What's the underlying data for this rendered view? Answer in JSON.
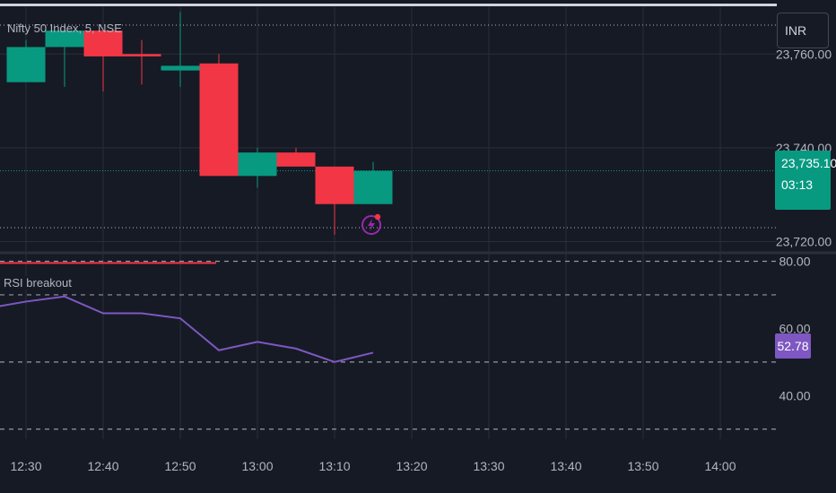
{
  "header": {
    "symbol_title": "Nifty 50 Index, 5, NSE",
    "currency": "INR"
  },
  "price_tag": {
    "price": "23,735.10",
    "countdown": "03:13"
  },
  "indicator": {
    "title": "RSI breakout",
    "rsi_value": "52.78"
  },
  "colors": {
    "up": "#089981",
    "down": "#f23645",
    "rsi_line": "#7e57c2",
    "breakout_line": "#f23645",
    "grid": "#2a2e39",
    "background": "#161a25"
  },
  "chart_data": [
    {
      "type": "candlestick",
      "title": "Nifty 50 Index, 5, NSE",
      "x": [
        "12:30",
        "12:35",
        "12:40",
        "12:45",
        "12:50",
        "12:55",
        "13:00",
        "13:05",
        "13:10",
        "13:15"
      ],
      "candles": [
        {
          "o": 23754.0,
          "h": 23763.0,
          "l": 23754.0,
          "c": 23761.5
        },
        {
          "o": 23761.5,
          "h": 23766.0,
          "l": 23753.0,
          "c": 23765.0
        },
        {
          "o": 23765.0,
          "h": 23765.0,
          "l": 23752.0,
          "c": 23759.5
        },
        {
          "o": 23760.0,
          "h": 23763.0,
          "l": 23753.5,
          "c": 23759.5
        },
        {
          "o": 23756.5,
          "h": 23769.0,
          "l": 23753.0,
          "c": 23757.5
        },
        {
          "o": 23758.0,
          "h": 23760.0,
          "l": 23734.0,
          "c": 23734.0
        },
        {
          "o": 23734.0,
          "h": 23740.0,
          "l": 23731.5,
          "c": 23739.0
        },
        {
          "o": 23739.0,
          "h": 23740.0,
          "l": 23736.0,
          "c": 23736.0
        },
        {
          "o": 23736.0,
          "h": 23736.0,
          "l": 23721.5,
          "c": 23728.0
        },
        {
          "o": 23728.0,
          "h": 23737.0,
          "l": 23728.0,
          "c": 23735.1
        }
      ],
      "y_ticks": [
        "23,720.00",
        "23,740.00",
        "23,760.00"
      ],
      "ylim": [
        23718,
        23770
      ],
      "last_price": 23735.1,
      "time_ticks": [
        "12:30",
        "12:40",
        "12:50",
        "13:00",
        "13:10",
        "13:20",
        "13:30",
        "13:40",
        "13:50",
        "14:00"
      ]
    },
    {
      "type": "line",
      "title": "RSI breakout",
      "x": [
        "12:25",
        "12:30",
        "12:35",
        "12:40",
        "12:45",
        "12:50",
        "12:55",
        "13:00",
        "13:05",
        "13:10",
        "13:15"
      ],
      "values": [
        66.0,
        68.0,
        69.5,
        64.5,
        64.5,
        63.0,
        53.5,
        56.0,
        54.0,
        50.0,
        52.78
      ],
      "levels": [
        80,
        70,
        50,
        30
      ],
      "y_ticks": [
        "40.00",
        "60.00",
        "80.00"
      ],
      "ylim": [
        27,
        82
      ],
      "breakout_level": 79.5,
      "last_value": 52.78
    }
  ]
}
